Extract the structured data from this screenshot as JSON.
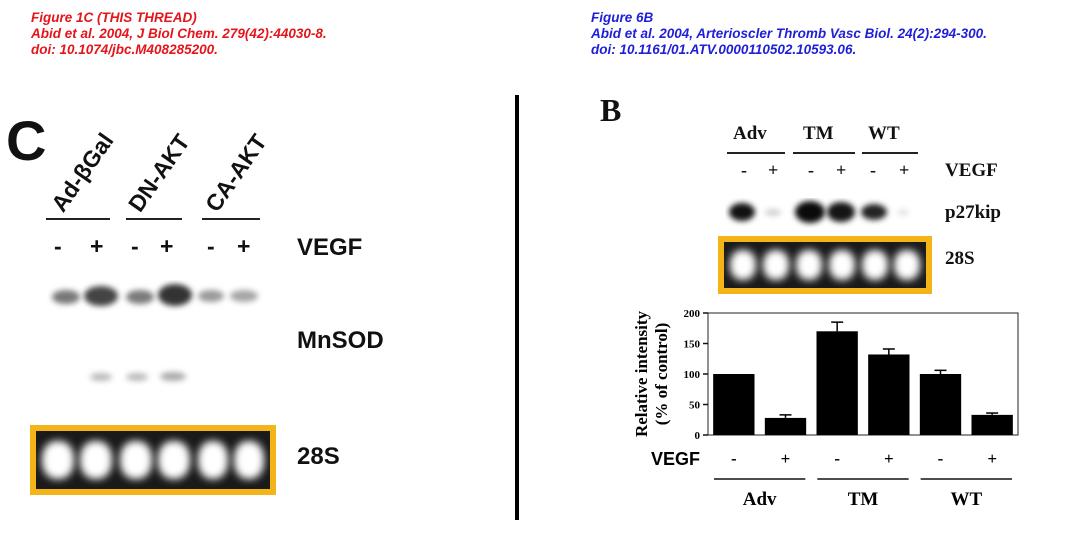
{
  "captions": {
    "left": {
      "line1": "Figure 1C   (THIS THREAD)",
      "line2": "Abid et al. 2004, J Biol Chem. 279(42):44030-8.",
      "line3": "doi: 10.1074/jbc.M408285200.",
      "color": "#e4151b"
    },
    "right": {
      "line1": "Figure 6B",
      "line2": "Abid et al. 2004, Arterioscler Thromb Vasc Biol. 24(2):294-300.",
      "line3": "doi: 10.1161/01.ATV.0000110502.10593.06.",
      "color": "#1f1fd8"
    }
  },
  "left_panel": {
    "letter": "C",
    "groups": [
      "Ad-βGal",
      "DN-AKT",
      "CA-AKT"
    ],
    "treatment_signs": [
      "-",
      "+",
      "-",
      "+",
      "-",
      "+"
    ],
    "treatment_label": "VEGF",
    "mnsod_label": "MnSOD",
    "rrna_label": "28S",
    "highlight_color": "#f2b419"
  },
  "right_panel": {
    "letter": "B",
    "groups": [
      "Adv",
      "TM",
      "WT"
    ],
    "treatment_signs": [
      "-",
      "+",
      "-",
      "+",
      "-",
      "+"
    ],
    "treatment_label": "VEGF",
    "protein_label": "p27kip",
    "rrna_label": "28S",
    "highlight_color": "#f2b419"
  },
  "chart_data": {
    "type": "bar",
    "categories": [
      "-",
      "+",
      "-",
      "+",
      "-",
      "+"
    ],
    "groups": [
      "Adv",
      "TM",
      "WT"
    ],
    "x_label_prefix": "VEGF",
    "values": [
      100,
      28,
      170,
      132,
      100,
      33
    ],
    "errors": [
      0,
      5,
      15,
      9,
      6,
      3
    ],
    "ylabel_line1": "Relative intensity",
    "ylabel_line2": "(% of control)",
    "yticks": [
      "0",
      "50",
      "100",
      "150",
      "200"
    ],
    "ylim": [
      0,
      200
    ]
  }
}
